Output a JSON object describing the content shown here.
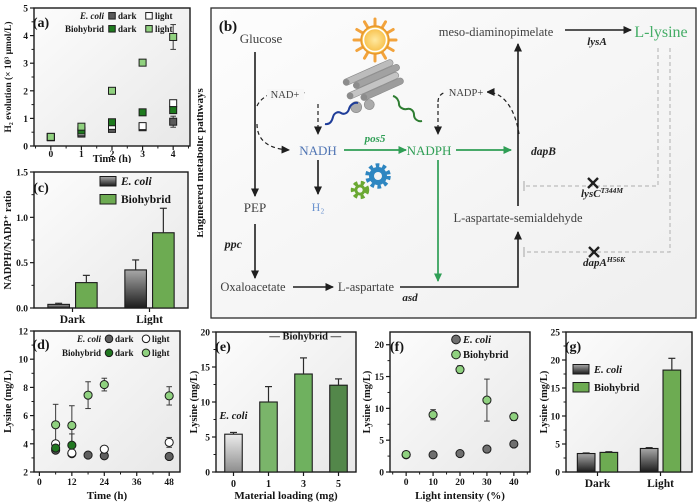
{
  "diagram": {
    "panel_label": "(b)",
    "side_label": "Engineered metabolic pathways",
    "labels": {
      "glucose": "Glucose",
      "nad_plus": "NAD+",
      "nadh": "NADH",
      "h2": "H₂",
      "pep": "PEP",
      "ppc": "ppc",
      "oxaloacetate": "Oxaloacetate",
      "l_aspartate": "L-aspartate",
      "asd": "asd",
      "pos5": "pos5",
      "nadph": "NADPH",
      "nadp_plus": "NADP+",
      "dapB": "dapB",
      "l_aspartate_semialdehyde": "L-aspartate-semialdehyde",
      "meso_diaminopimelate": "meso-diaminopimelate",
      "lysA": "lysA",
      "l_lysine": "L-lysine",
      "lysC_gene": "lysC",
      "lysC_mutation": "T344M",
      "dapA_gene": "dapA",
      "dapA_mutation": "H56K"
    },
    "colors": {
      "nadh_blue": "#4f74b3",
      "h2_blue": "#6b93cf",
      "pathway_green": "#2f9e55",
      "lysine_green": "#44ad66",
      "text_dark": "#3f3f3f",
      "line_black": "#1f1f1f",
      "feedback_gray": "#bcbcbc",
      "sun_orange": "#f2a33c",
      "rod_gray": "#ababab",
      "gear_blue": "#2e86c1",
      "gear_green": "#6aa832",
      "squiggle_blue": "#1f3d99",
      "squiggle_green": "#2e7d32"
    }
  },
  "chart_data": [
    {
      "id": "a",
      "type": "scatter",
      "marker": "square",
      "panel_label": "(a)",
      "title": "",
      "xlabel": "Time (h)",
      "ylabel": "H₂ evolution (× 10³ μmol/L)",
      "xlim": [
        -0.55,
        4.55
      ],
      "ylim": [
        0,
        5
      ],
      "xticks": [
        0,
        1,
        2,
        3,
        4
      ],
      "xtick_labels": [
        "0",
        "1",
        "2",
        "3",
        "4"
      ],
      "xminor": 0.5,
      "yticks": [
        0,
        1,
        2,
        3,
        4,
        5
      ],
      "ytick_labels": [
        "0",
        "1",
        "2",
        "3",
        "4",
        "5"
      ],
      "yminor": 0.5,
      "legend_rows": [
        {
          "prefix": "E. coli",
          "italic": true,
          "entries": [
            {
              "label": "dark",
              "fill": "#5a5a5a"
            },
            {
              "label": "light",
              "fill": "#ffffff"
            }
          ]
        },
        {
          "prefix": "Biohybrid",
          "italic": false,
          "entries": [
            {
              "label": "dark",
              "fill": "#1e7a1e"
            },
            {
              "label": "light",
              "fill": "#90d17f"
            }
          ]
        }
      ],
      "series": [
        {
          "name": "E. coli dark",
          "fill": "#5a5a5a",
          "x": [
            0,
            1,
            2,
            3,
            4
          ],
          "y": [
            0.32,
            0.45,
            0.62,
            0.68,
            0.88
          ],
          "err": [
            0.04,
            0.06,
            0.08,
            0.1,
            0.2
          ]
        },
        {
          "name": "E. coli light",
          "fill": "#ffffff",
          "x": [
            0,
            1,
            2,
            3,
            4
          ],
          "y": [
            0.32,
            0.5,
            0.73,
            0.72,
            1.55
          ],
          "err": [
            0.04,
            0.05,
            0.06,
            0.06,
            0.08
          ]
        },
        {
          "name": "Biohybrid dark",
          "fill": "#1e7a1e",
          "x": [
            0,
            1,
            2,
            3,
            4
          ],
          "y": [
            0.33,
            0.56,
            0.86,
            1.22,
            1.3
          ],
          "err": [
            0.04,
            0.06,
            0.1,
            0.08,
            0.1
          ]
        },
        {
          "name": "Biohybrid light",
          "fill": "#90d17f",
          "x": [
            0,
            1,
            2,
            3,
            4
          ],
          "y": [
            0.33,
            0.7,
            2.0,
            3.02,
            3.95
          ],
          "err": [
            0.04,
            0.07,
            0.12,
            0.1,
            0.45
          ]
        }
      ]
    },
    {
      "id": "c",
      "type": "bar",
      "panel_label": "(c)",
      "title": "",
      "xlabel": "",
      "ylabel": "NADPH/NADP⁺ ratio",
      "categories": [
        "Dark",
        "Light"
      ],
      "ylim": [
        0,
        1.5
      ],
      "yticks": [
        0,
        0.5,
        1.0,
        1.5
      ],
      "ytick_labels": [
        "0.0",
        "0.5",
        "1.0",
        "1.5"
      ],
      "yminor": 0.25,
      "legend_rows": [
        {
          "entries": [
            {
              "label": "E. coli",
              "italic": true,
              "fill": "gradient:gray"
            }
          ]
        },
        {
          "entries": [
            {
              "label": "Biohybrid",
              "italic": false,
              "fill": "#6dab52"
            }
          ]
        }
      ],
      "series": [
        {
          "name": "E. coli",
          "fill": "gradient:gray",
          "values": [
            0.04,
            0.42
          ],
          "err": [
            0.012,
            0.11
          ]
        },
        {
          "name": "Biohybrid",
          "fill": "#6dab52",
          "values": [
            0.28,
            0.83
          ],
          "err": [
            0.08,
            0.27
          ]
        }
      ]
    },
    {
      "id": "d",
      "type": "scatter",
      "marker": "circle",
      "panel_label": "(d)",
      "title": "",
      "xlabel": "Time (h)",
      "ylabel": "Lysine (mg/L)",
      "xlim": [
        -2,
        52
      ],
      "ylim": [
        2,
        12
      ],
      "xticks": [
        0,
        12,
        24,
        36,
        48
      ],
      "xtick_labels": [
        "0",
        "12",
        "24",
        "36",
        "48"
      ],
      "xminor": 6,
      "yticks": [
        2,
        4,
        6,
        8,
        10,
        12
      ],
      "ytick_labels": [
        "2",
        "4",
        "6",
        "8",
        "10",
        "12"
      ],
      "yminor": 1,
      "legend_rows": [
        {
          "prefix": "E. coli",
          "italic": true,
          "entries": [
            {
              "label": "dark",
              "fill": "#5f5f5f"
            },
            {
              "label": "light",
              "fill": "#ffffff"
            }
          ]
        },
        {
          "prefix": "Biohybrid",
          "italic": false,
          "entries": [
            {
              "label": "dark",
              "fill": "#217821"
            },
            {
              "label": "light",
              "fill": "#8fd17f"
            }
          ]
        }
      ],
      "series": [
        {
          "name": "E. coli dark",
          "fill": "#5f5f5f",
          "x": [
            6,
            12,
            18,
            24,
            48
          ],
          "y": [
            3.55,
            3.3,
            3.2,
            3.15,
            3.1
          ],
          "err": [
            0.2,
            0.2,
            0.15,
            0.12,
            0.12
          ]
        },
        {
          "name": "E. coli light",
          "fill": "#ffffff",
          "x": [
            6,
            12,
            24,
            48
          ],
          "y": [
            4.0,
            3.35,
            3.62,
            4.1
          ],
          "err": [
            0.2,
            0.15,
            0.12,
            0.35
          ]
        },
        {
          "name": "Biohybrid dark",
          "fill": "#217821",
          "x": [
            6,
            12
          ],
          "y": [
            3.7,
            3.9
          ],
          "err": [
            0.25,
            0.8
          ]
        },
        {
          "name": "Biohybrid light",
          "fill": "#8fd17f",
          "x": [
            6,
            12,
            18,
            24,
            48
          ],
          "y": [
            5.35,
            5.3,
            7.45,
            8.2,
            7.4
          ],
          "err": [
            1.45,
            1.4,
            0.95,
            0.45,
            0.65
          ]
        }
      ]
    },
    {
      "id": "e",
      "type": "bar",
      "panel_label": "(e)",
      "title": "",
      "xlabel": "Material loading (mg)",
      "ylabel": "Lysine (mg/L)",
      "categories": [
        "0",
        "1",
        "3",
        "5"
      ],
      "ylim": [
        0,
        20
      ],
      "yticks": [
        0,
        5,
        10,
        15,
        20
      ],
      "ytick_labels": [
        "0",
        "5",
        "10",
        "15",
        "20"
      ],
      "yminor": 2.5,
      "values": [
        5.4,
        10.0,
        14.0,
        12.4
      ],
      "err": [
        0.25,
        2.2,
        2.3,
        0.9
      ],
      "bar_colors": [
        "gradient:lightgray",
        "#7ab56a",
        "#6fb15f",
        "#53874a"
      ],
      "annotations": [
        {
          "text": "E. coli",
          "italic": true,
          "x": 0.5,
          "y": 7.6
        },
        {
          "text": "— Biohybrid —",
          "italic": false,
          "x": 2.55,
          "y": 18.9
        }
      ]
    },
    {
      "id": "f",
      "type": "scatter",
      "marker": "circle",
      "panel_label": "(f)",
      "title": "",
      "xlabel": "Light intensity (%)",
      "ylabel": "Lysine (mg/L)",
      "xlim": [
        -6,
        46
      ],
      "ylim": [
        0,
        22
      ],
      "xticks": [
        0,
        10,
        20,
        30,
        40
      ],
      "xtick_labels": [
        "0",
        "10",
        "20",
        "30",
        "40"
      ],
      "xminor": 5,
      "yticks": [
        0,
        5,
        10,
        15,
        20
      ],
      "ytick_labels": [
        "0",
        "5",
        "10",
        "15",
        "20"
      ],
      "yminor": 2.5,
      "legend_rows": [
        {
          "entries": [
            {
              "label": "E. coli",
              "italic": true,
              "fill": "#6f6f6f"
            }
          ]
        },
        {
          "entries": [
            {
              "label": "Biohybrid",
              "italic": false,
              "fill": "#8fd17f"
            }
          ]
        }
      ],
      "series": [
        {
          "name": "E. coli",
          "fill": "#6f6f6f",
          "x": [
            0,
            10,
            20,
            30,
            40
          ],
          "y": [
            2.7,
            2.7,
            2.9,
            3.6,
            4.4
          ],
          "err": [
            0.1,
            0.12,
            0.12,
            0.15,
            0.2
          ]
        },
        {
          "name": "Biohybrid",
          "fill": "#8fd17f",
          "x": [
            0,
            10,
            20,
            30,
            40
          ],
          "y": [
            2.75,
            9.0,
            16.1,
            11.3,
            8.7
          ],
          "err": [
            0.1,
            0.8,
            0.6,
            3.3,
            0.6
          ]
        }
      ]
    },
    {
      "id": "g",
      "type": "bar",
      "panel_label": "(g)",
      "title": "",
      "xlabel": "",
      "ylabel": "Lysine (mg/L)",
      "categories": [
        "Dark",
        "Light"
      ],
      "ylim": [
        0,
        25
      ],
      "yticks": [
        0,
        5,
        10,
        15,
        20,
        25
      ],
      "ytick_labels": [
        "0",
        "5",
        "10",
        "15",
        "20",
        "25"
      ],
      "yminor": 2.5,
      "legend_rows": [
        {
          "entries": [
            {
              "label": "E. coli",
              "italic": true,
              "fill": "gradient:gray"
            }
          ]
        },
        {
          "entries": [
            {
              "label": "Biohybrid",
              "italic": false,
              "fill": "#6dab52"
            }
          ]
        }
      ],
      "series": [
        {
          "name": "E. coli",
          "fill": "gradient:gray",
          "values": [
            3.3,
            4.2
          ],
          "err": [
            0.1,
            0.15
          ]
        },
        {
          "name": "Biohybrid",
          "fill": "#6dab52",
          "values": [
            3.5,
            18.2
          ],
          "err": [
            0.12,
            2.1
          ]
        }
      ]
    }
  ]
}
